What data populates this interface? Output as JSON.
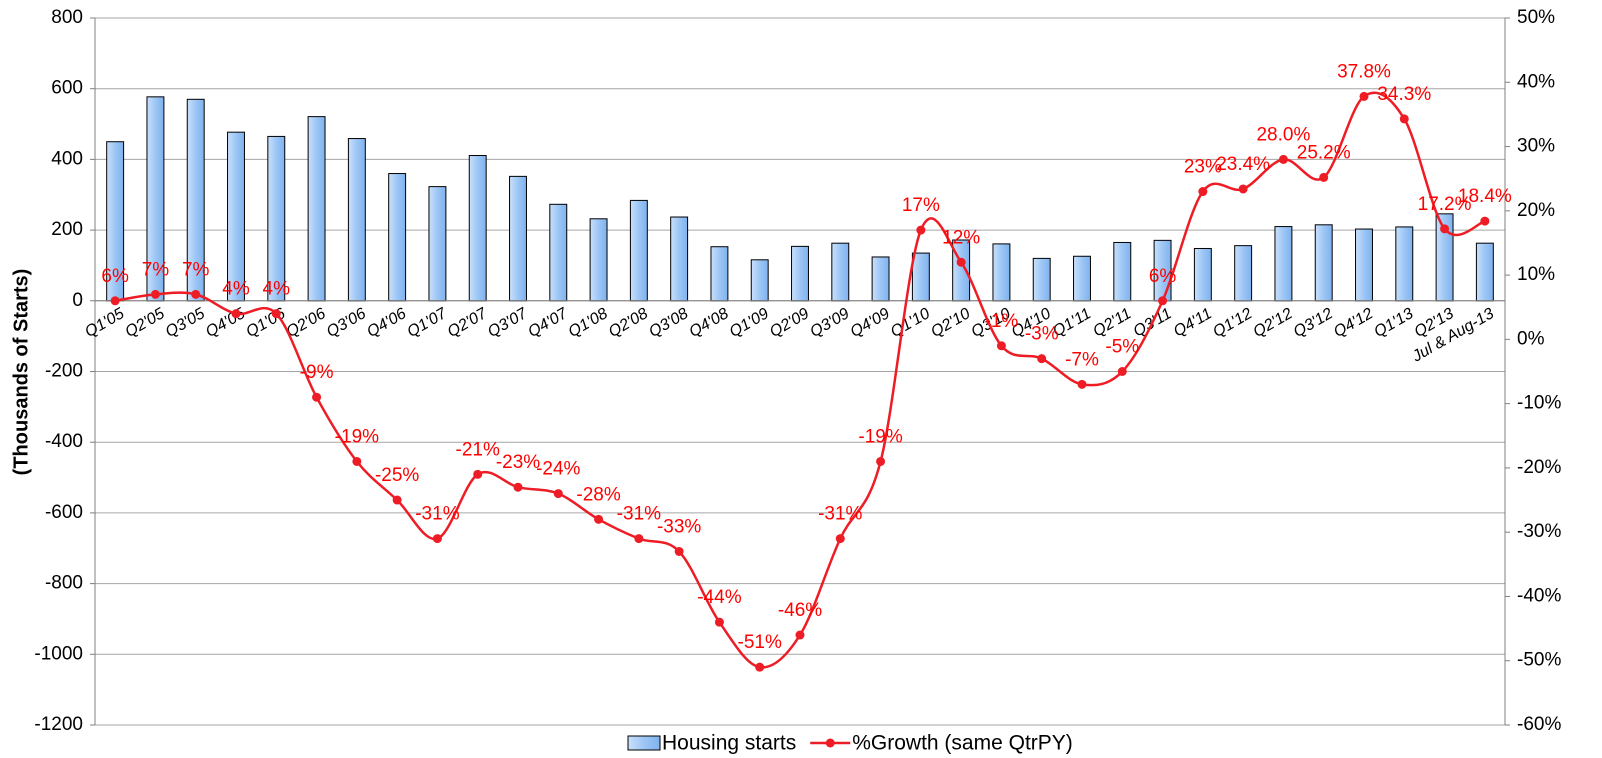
{
  "chart_data": {
    "type": "bar-line",
    "y_label": "(Thousands of Starts)",
    "categories": [
      "Q1'05",
      "Q2'05",
      "Q3'05",
      "Q4'05",
      "Q1'06",
      "Q2'06",
      "Q3'06",
      "Q4'06",
      "Q1'07",
      "Q2'07",
      "Q3'07",
      "Q4'07",
      "Q1'08",
      "Q2'08",
      "Q3'08",
      "Q4'08",
      "Q1'09",
      "Q2'09",
      "Q3'09",
      "Q4'09",
      "Q1'10",
      "Q2'10",
      "Q3'10",
      "Q4'10",
      "Q1'11",
      "Q2'11",
      "Q3'11",
      "Q4'11",
      "Q1'12",
      "Q2'12",
      "Q3'12",
      "Q4'12",
      "Q1'13",
      "Q2'13",
      "Jul & Aug-13"
    ],
    "series": [
      {
        "name": "Housing starts",
        "type": "bar",
        "color": "#9dc6f5",
        "values": [
          450,
          577,
          570,
          477,
          465,
          521,
          459,
          360,
          323,
          411,
          352,
          273,
          232,
          284,
          237,
          153,
          116,
          154,
          163,
          124,
          135,
          172,
          161,
          120,
          126,
          165,
          171,
          148,
          156,
          210,
          215,
          203,
          209,
          246,
          163
        ]
      },
      {
        "name": "%Growth (same QtrPY)",
        "type": "line",
        "axis": "y2",
        "color": "#ee1c25",
        "values": [
          6,
          7,
          7,
          4,
          4,
          -9,
          -19,
          -25,
          -31,
          -21,
          -23,
          -24,
          -28,
          -31,
          -33,
          -44,
          -51,
          -46,
          -31,
          -19,
          17,
          12,
          -1,
          -3,
          -7,
          -5,
          6,
          23,
          23.4,
          28.0,
          25.2,
          37.8,
          34.3,
          17.2,
          18.4
        ],
        "value_labels": [
          "6%",
          "7%",
          "7%",
          "4%",
          "4%",
          "-9%",
          "-19%",
          "-25%",
          "-31%",
          "-21%",
          "-23%",
          "-24%",
          "-28%",
          "-31%",
          "-33%",
          "-44%",
          "-51%",
          "-46%",
          "-31%",
          "-19%",
          "17%",
          "12%",
          "-1%",
          "-3%",
          "-7%",
          "-5%",
          "6%",
          "23%",
          "23.4%",
          "28.0%",
          "25.2%",
          "37.8%",
          "34.3%",
          "17.2%",
          "18.4%"
        ]
      }
    ],
    "ylim": [
      -1200,
      800
    ],
    "yticks": [
      -1200,
      -1000,
      -800,
      -600,
      -400,
      -200,
      0,
      200,
      400,
      600,
      800
    ],
    "y2lim": [
      -60,
      50
    ],
    "y2ticks": [
      {
        "value": -60,
        "label": "-60%"
      },
      {
        "value": -50,
        "label": "-50%"
      },
      {
        "value": -40,
        "label": "-40%"
      },
      {
        "value": -30,
        "label": "-30%"
      },
      {
        "value": -20,
        "label": "-20%"
      },
      {
        "value": -10,
        "label": "-10%"
      },
      {
        "value": 0,
        "label": "0%"
      },
      {
        "value": 10,
        "label": "10%"
      },
      {
        "value": 20,
        "label": "20%"
      },
      {
        "value": 30,
        "label": "30%"
      },
      {
        "value": 40,
        "label": "40%"
      },
      {
        "value": 50,
        "label": "50%"
      }
    ],
    "grid": true,
    "legend": "bottom"
  }
}
